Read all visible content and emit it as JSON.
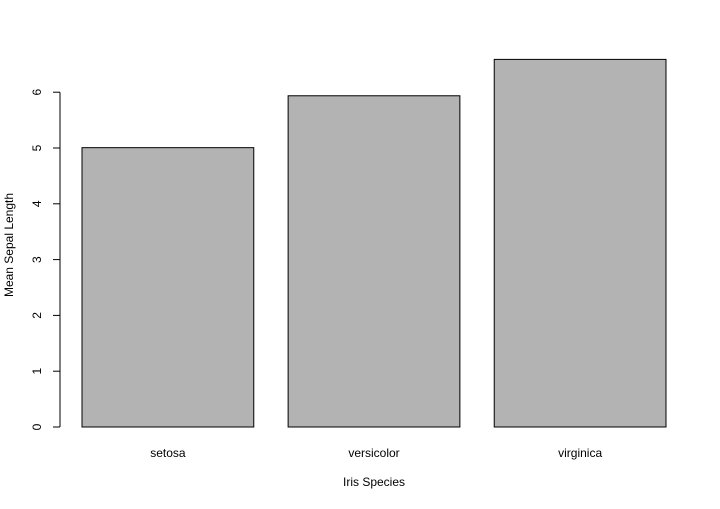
{
  "chart_data": {
    "type": "bar",
    "categories": [
      "setosa",
      "versicolor",
      "virginica"
    ],
    "values": [
      5.006,
      5.936,
      6.588
    ],
    "xlabel": "Iris Species",
    "ylabel": "Mean Sepal Length",
    "ylim": [
      0,
      6.6
    ],
    "y_ticks": [
      0,
      1,
      2,
      3,
      4,
      5,
      6
    ],
    "bar_color": "#b3b3b3",
    "bar_outline_color": "#000000",
    "grid": false,
    "legend": "none"
  }
}
